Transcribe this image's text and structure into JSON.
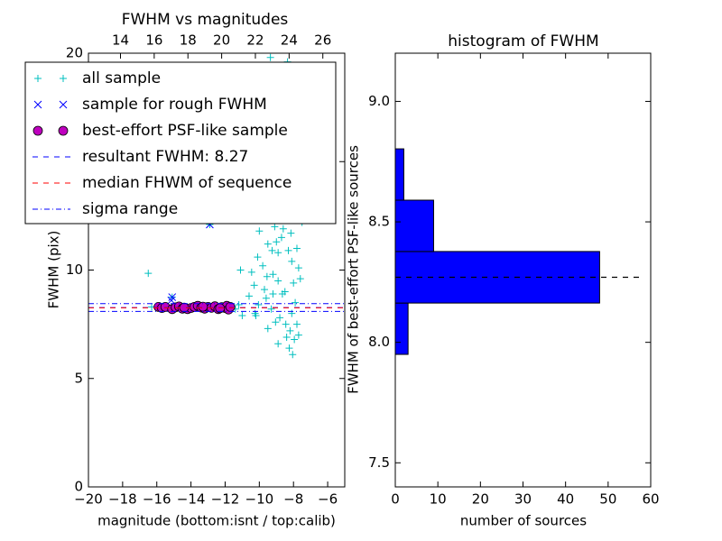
{
  "chart_data": [
    {
      "type": "scatter",
      "title": "FWHM vs magnitudes",
      "x_label": "magnitude (bottom:isnt / top:calib)",
      "y_label": "FWHM (pix)",
      "xlim": [
        -20,
        -5
      ],
      "xticks": [
        {
          "value": -20,
          "label": "−20"
        },
        {
          "value": -18,
          "label": "−18"
        },
        {
          "value": -16,
          "label": "−16"
        },
        {
          "value": -14,
          "label": "−14"
        },
        {
          "value": -12,
          "label": "−12"
        },
        {
          "value": -10,
          "label": "−10"
        },
        {
          "value": -8,
          "label": "−8"
        },
        {
          "value": -6,
          "label": "−6"
        }
      ],
      "x2lim": [
        12.1,
        27.3
      ],
      "x2ticks": [
        14,
        16,
        18,
        20,
        22,
        24,
        26
      ],
      "ylim": [
        0,
        20
      ],
      "yticks": [
        0,
        5,
        10,
        15,
        20
      ],
      "legend": "upper left",
      "series": [
        {
          "name": "all sample",
          "color": "#00bfbf",
          "marker": "+",
          "x": [
            -16.3,
            -11.4,
            -11.2,
            -16.5,
            -15.1,
            -12.9,
            -11.0,
            -10.6,
            -11.1,
            -10.3,
            -10.1,
            -10.0,
            -9.9,
            -9.8,
            -9.7,
            -9.6,
            -9.5,
            -9.4,
            -9.3,
            -9.2,
            -9.1,
            -9.0,
            -8.9,
            -8.8,
            -8.7,
            -8.6,
            -8.5,
            -8.4,
            -8.3,
            -8.2,
            -8.1,
            -8.0,
            -7.9,
            -7.8,
            -7.7,
            -7.6,
            -7.5,
            -8.25,
            -8.05,
            -7.95,
            -8.45,
            -8.65,
            -9.05,
            -9.25,
            -9.45,
            -9.65,
            -9.85,
            -10.05,
            -10.25,
            -10.45,
            -8.35,
            -8.15,
            -8.55,
            -9.35,
            -8.75,
            -8.95,
            -8.05,
            -7.85,
            -7.65,
            -8.6,
            -8.3,
            -8.0,
            -8.9,
            -9.2,
            -9.55,
            -8.45,
            -8.15,
            -7.7,
            -8.8,
            -9.0,
            -8.5,
            -8.25,
            -7.9,
            -8.7,
            -8.35,
            -9.8,
            -10.15,
            -8.1,
            -7.8,
            -8.4,
            -8.9,
            -9.5,
            -10.2
          ],
          "values": [
            8.3,
            8.2,
            8.4,
            9.85,
            8.75,
            12.1,
            7.9,
            8.8,
            10.0,
            9.3,
            10.6,
            11.8,
            12.5,
            10.2,
            9.1,
            8.7,
            11.2,
            13.2,
            8.2,
            9.8,
            12.0,
            14.5,
            10.8,
            7.8,
            11.5,
            13.8,
            9.0,
            16.2,
            12.8,
            7.2,
            10.4,
            15.1,
            8.5,
            11.0,
            7.0,
            9.6,
            12.2,
            6.4,
            6.1,
            6.8,
            7.5,
            8.9,
            7.6,
            10.9,
            12.9,
            14.0,
            13.3,
            8.4,
            8.0,
            9.9,
            17.5,
            18.6,
            19.2,
            19.8,
            15.9,
            16.8,
            13.9,
            14.6,
            13.1,
            11.9,
            10.9,
            9.4,
            9.5,
            8.9,
            9.7,
            12.6,
            11.7,
            10.1,
            13.6,
            11.3,
            14.8,
            15.6,
            17.0,
            17.9,
            19.6,
            15.4,
            12.9,
            8.0,
            7.5,
            6.9,
            6.6,
            7.3,
            7.9
          ]
        },
        {
          "name": "sample for rough FWHM",
          "color": "#0000ff",
          "marker": "x",
          "x": [
            -15.1,
            -15.15,
            -12.9
          ],
          "values": [
            8.75,
            8.6,
            12.1
          ]
        },
        {
          "name": "best-effort PSF-like sample",
          "color": "#bf00bf",
          "marker": "o",
          "x": [
            -15.9,
            -15.7,
            -15.5,
            -15.1,
            -14.9,
            -14.7,
            -14.5,
            -14.2,
            -14.0,
            -13.8,
            -13.6,
            -13.4,
            -13.2,
            -13.0,
            -12.8,
            -12.6,
            -12.4,
            -12.2,
            -12.0,
            -11.9,
            -11.8,
            -11.7,
            -12.3,
            -13.3,
            -14.4
          ],
          "values": [
            8.3,
            8.25,
            8.3,
            8.2,
            8.28,
            8.32,
            8.22,
            8.2,
            8.25,
            8.3,
            8.35,
            8.27,
            8.22,
            8.3,
            8.26,
            8.33,
            8.2,
            8.29,
            8.25,
            8.35,
            8.18,
            8.3,
            8.24,
            8.31,
            8.27
          ]
        },
        {
          "name": "resultant FWHM: 8.27",
          "color": "#0000ff",
          "style": "dashed",
          "hline": [
            8.27
          ]
        },
        {
          "name": "median FHWM of sequence",
          "color": "#ff0000",
          "style": "dashed",
          "hline": [
            8.26
          ]
        },
        {
          "name": "sigma range",
          "color": "#0000ff",
          "style": "dashdot",
          "hline": [
            8.09,
            8.45
          ]
        }
      ]
    },
    {
      "type": "histogram",
      "orientation": "horizontal",
      "title": "histogram of FWHM",
      "x_label": "number of sources",
      "y_label": "FWHM of best-effort PSF-like sources",
      "xlim": [
        0,
        60
      ],
      "xticks": [
        0,
        10,
        20,
        30,
        40,
        50,
        60
      ],
      "ylim": [
        7.4,
        9.2
      ],
      "yticks": [
        7.5,
        {
          "value": 8.0,
          "label": "8.0"
        },
        8.5,
        {
          "value": 9.0,
          "label": "9.0"
        }
      ],
      "bins": [
        7.95,
        8.163,
        8.377,
        8.59,
        8.803
      ],
      "values": [
        3,
        48,
        9,
        2
      ],
      "color": "#0000ff",
      "median_line": {
        "value": 8.27,
        "x": [
          0,
          58
        ],
        "color": "#000000"
      }
    }
  ]
}
